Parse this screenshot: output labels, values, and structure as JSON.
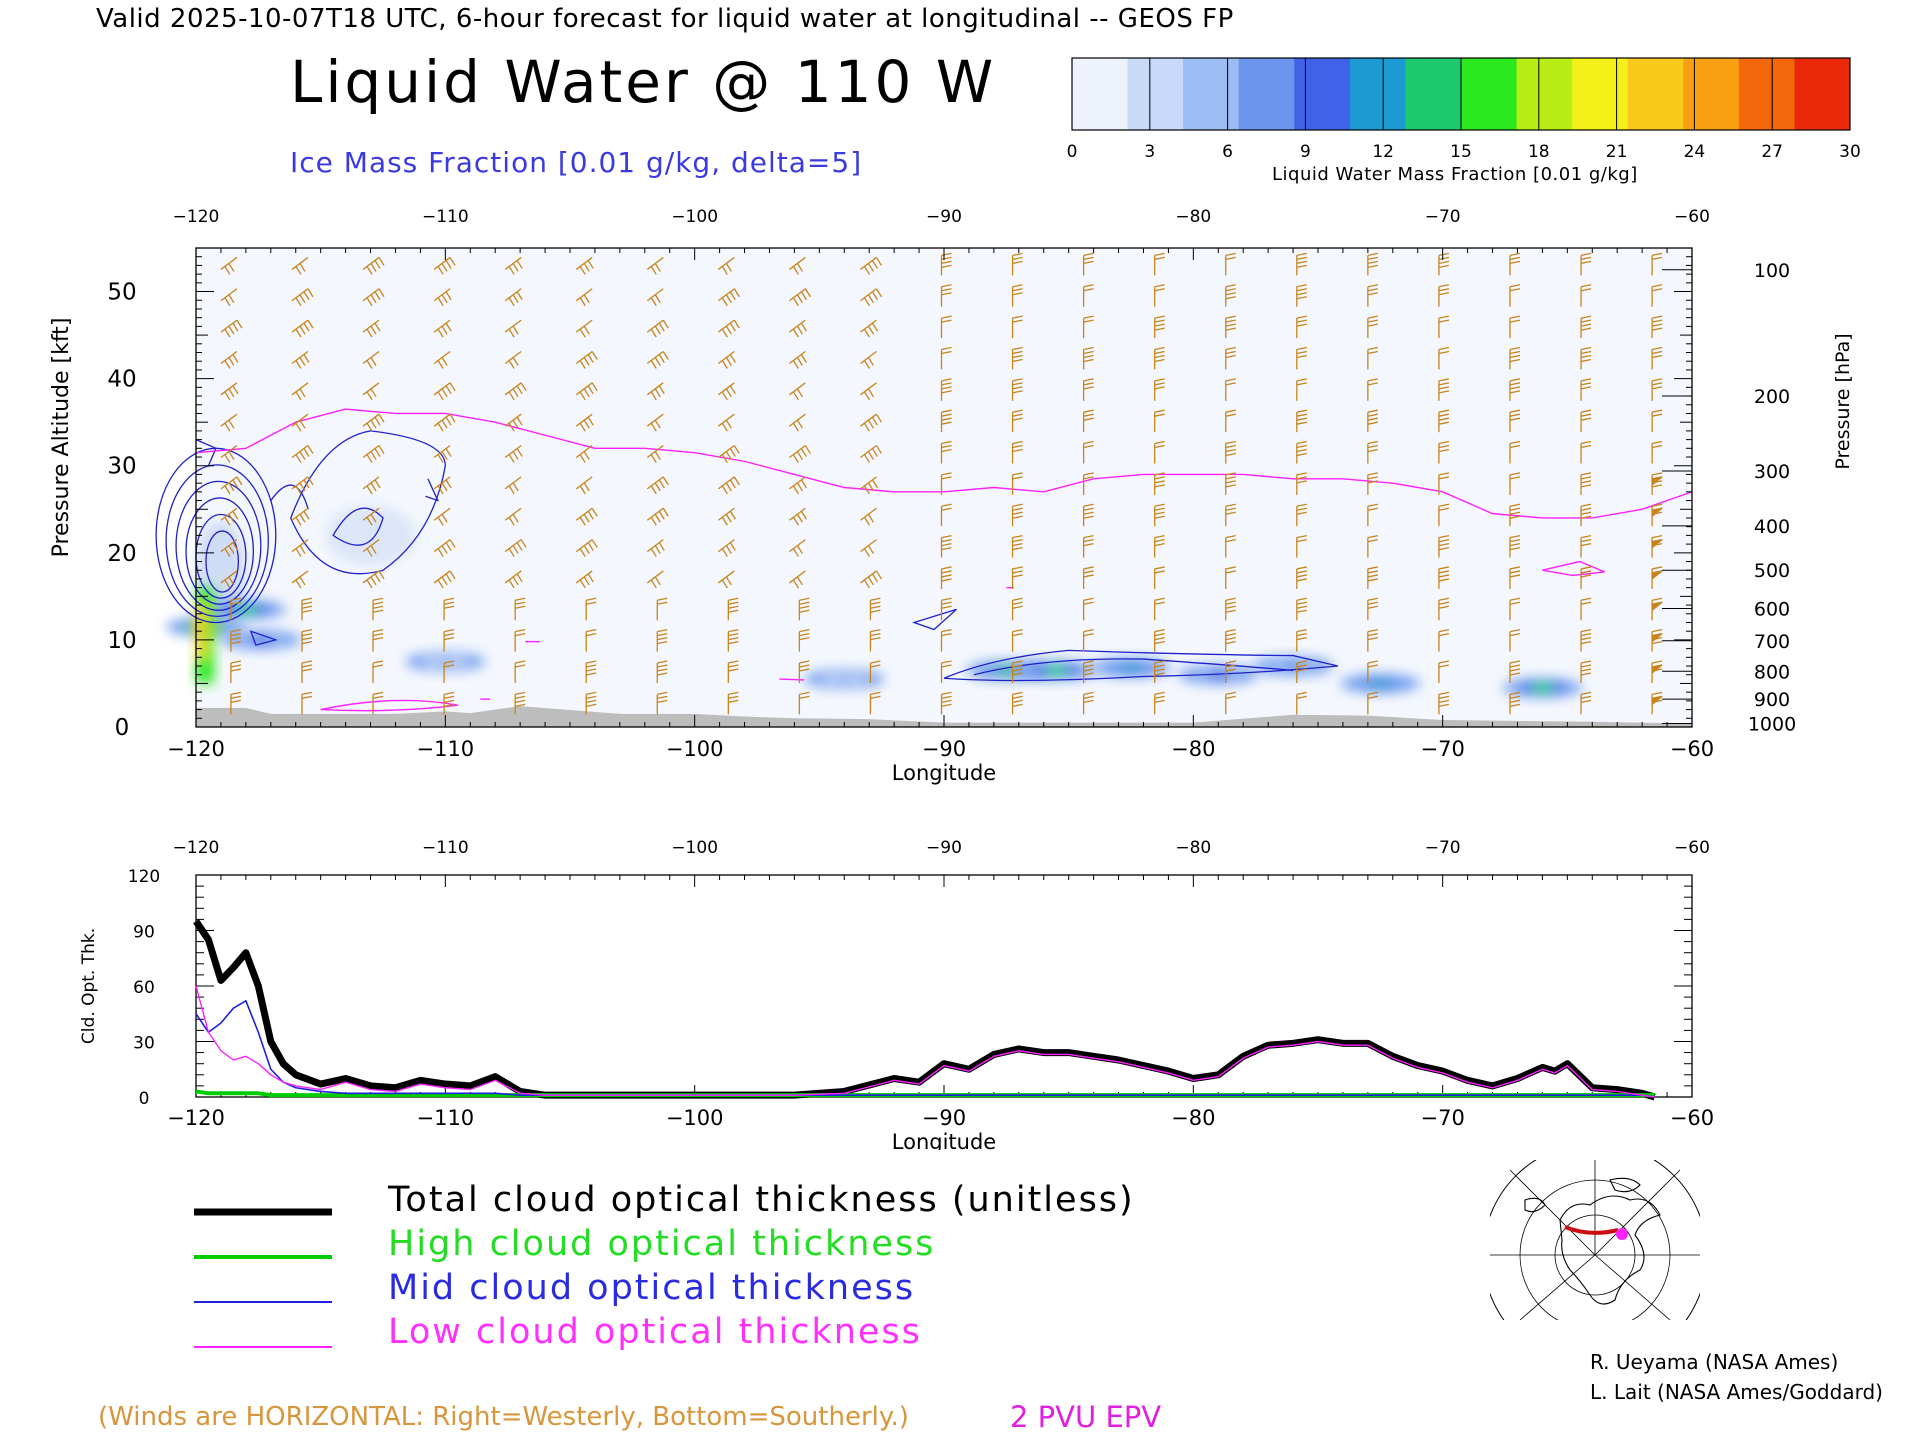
{
  "header": {
    "valid_line": "Valid 2025-10-07T18 UTC, 6-hour forecast for liquid water at longitudinal -- GEOS FP",
    "title": "Liquid Water @ 110 W",
    "subtitle": "Ice Mass Fraction [0.01 g/kg, delta=5]"
  },
  "colorbar": {
    "label": "Liquid Water Mass Fraction [0.01 g/kg]",
    "ticks": [
      "0",
      "3",
      "6",
      "9",
      "12",
      "15",
      "18",
      "21",
      "24",
      "27",
      "30"
    ],
    "colors": [
      "#eef2fc",
      "#c9d9f8",
      "#9cbcf4",
      "#6a96ee",
      "#3f63e8",
      "#1c9ad2",
      "#1ec86e",
      "#2ce81e",
      "#b8ee16",
      "#f4f01a",
      "#f8c81a",
      "#f8a012",
      "#f4680c",
      "#e82808"
    ]
  },
  "chart_data": [
    {
      "type": "heatmap",
      "title": "Liquid Water @ 110 W",
      "xlabel": "Longitude",
      "ylabel": "Pressure Altitude [kft]",
      "ylabel_right": "Pressure [hPa]",
      "xlim": [
        -120,
        -60
      ],
      "ylim": [
        0,
        55
      ],
      "x_ticks": [
        -120,
        -110,
        -100,
        -90,
        -80,
        -70,
        -60
      ],
      "x_tick_labels": [
        "−120",
        "−110",
        "−100",
        "−90",
        "−80",
        "−70",
        "−60"
      ],
      "y_ticks": [
        0,
        10,
        20,
        30,
        40,
        50
      ],
      "y_tick_labels": [
        "0",
        "10",
        "20",
        "30",
        "40",
        "50"
      ],
      "right_ticks": [
        {
          "kft": 52.5,
          "label": "100"
        },
        {
          "kft": 38.0,
          "label": "200"
        },
        {
          "kft": 29.4,
          "label": "300"
        },
        {
          "kft": 23.1,
          "label": "400"
        },
        {
          "kft": 18.0,
          "label": "500"
        },
        {
          "kft": 13.6,
          "label": "600"
        },
        {
          "kft": 9.9,
          "label": "700"
        },
        {
          "kft": 6.4,
          "label": "800"
        },
        {
          "kft": 3.2,
          "label": "900"
        },
        {
          "kft": 0.4,
          "label": "1000"
        }
      ],
      "liquid_water_blobs": [
        {
          "lon": -119.6,
          "kft": 11.5,
          "value": 22
        },
        {
          "lon": -118.0,
          "kft": 13.5,
          "value": 16
        },
        {
          "lon": -117.4,
          "kft": 10.0,
          "value": 9
        },
        {
          "lon": -110.0,
          "kft": 7.5,
          "value": 6
        },
        {
          "lon": -87.5,
          "kft": 6.5,
          "value": 14
        },
        {
          "lon": -85.5,
          "kft": 6.5,
          "value": 15
        },
        {
          "lon": -82.5,
          "kft": 6.8,
          "value": 12
        },
        {
          "lon": -79.0,
          "kft": 6.0,
          "value": 10
        },
        {
          "lon": -76.0,
          "kft": 7.0,
          "value": 8
        },
        {
          "lon": -72.5,
          "kft": 5.0,
          "value": 12
        },
        {
          "lon": -66.0,
          "kft": 4.5,
          "value": 16
        },
        {
          "lon": -94.0,
          "kft": 5.5,
          "value": 5
        }
      ],
      "epv_2pvu_line": {
        "lon": [
          -120,
          -118,
          -116,
          -114,
          -112,
          -110,
          -108,
          -106,
          -104,
          -102,
          -100,
          -98,
          -96,
          -94,
          -92,
          -90,
          -88,
          -86,
          -84,
          -82,
          -80,
          -78,
          -76,
          -74,
          -72,
          -70,
          -68,
          -66,
          -64,
          -62,
          -60
        ],
        "kft": [
          31.5,
          32,
          35,
          36.5,
          36,
          36,
          35,
          33.5,
          32,
          32,
          31.5,
          30.5,
          29,
          27.5,
          27,
          27,
          27.5,
          27,
          28.5,
          29,
          29,
          29,
          28.5,
          28.5,
          28,
          27,
          24.5,
          24,
          24,
          25,
          27
        ]
      },
      "annotations": [
        "2 PVU EPV"
      ]
    },
    {
      "type": "line",
      "xlabel": "Longitude",
      "ylabel": "Cld. Opt. Thk.",
      "xlim": [
        -120,
        -60
      ],
      "ylim": [
        0,
        120
      ],
      "x_ticks": [
        -120,
        -110,
        -100,
        -90,
        -80,
        -70,
        -60
      ],
      "x_tick_labels": [
        "−120",
        "−110",
        "−100",
        "−90",
        "−80",
        "−70",
        "−60"
      ],
      "y_ticks": [
        0,
        30,
        60,
        90,
        120
      ],
      "y_tick_labels": [
        "0",
        "30",
        "60",
        "90",
        "120"
      ],
      "x": [
        -120,
        -119.5,
        -119,
        -118.5,
        -118,
        -117.5,
        -117,
        -116.5,
        -116,
        -115,
        -114,
        -113,
        -112,
        -111,
        -110,
        -109,
        -108,
        -107,
        -106,
        -104,
        -102,
        -100,
        -98,
        -96,
        -94,
        -92,
        -91,
        -90,
        -89,
        -88,
        -87,
        -86,
        -85,
        -84,
        -83,
        -82,
        -81,
        -80,
        -79,
        -78,
        -77,
        -76,
        -75,
        -74,
        -73,
        -72,
        -71,
        -70,
        -69,
        -68,
        -67,
        -66,
        -65.5,
        -65,
        -64,
        -63,
        -62,
        -61.5
      ],
      "series": [
        {
          "name": "Total cloud optical thickness (unitless)",
          "color": "#000000",
          "values": [
            95,
            85,
            63,
            70,
            78,
            60,
            30,
            18,
            12,
            7,
            10,
            6,
            5,
            9,
            7,
            6,
            11,
            3,
            1,
            1,
            1,
            1,
            1,
            1,
            3,
            10,
            8,
            18,
            15,
            23,
            26,
            24,
            24,
            22,
            20,
            17,
            14,
            10,
            12,
            22,
            28,
            29,
            31,
            29,
            29,
            22,
            17,
            14,
            9,
            6,
            10,
            16,
            14,
            18,
            5,
            4,
            2,
            0
          ]
        },
        {
          "name": "High cloud optical thickness",
          "color": "#00cc00",
          "values": [
            3,
            2,
            2,
            2,
            2,
            2,
            1,
            1,
            1,
            1,
            1,
            1,
            1,
            1,
            1,
            1,
            1,
            1,
            1,
            1,
            1,
            1,
            1,
            1,
            1,
            1,
            1,
            1,
            1,
            1,
            1,
            1,
            1,
            1,
            1,
            1,
            1,
            1,
            1,
            1,
            1,
            1,
            1,
            1,
            1,
            1,
            1,
            1,
            1,
            1,
            1,
            1,
            1,
            1,
            1,
            1,
            1,
            1
          ]
        },
        {
          "name": "Mid cloud optical thickness",
          "color": "#2020e0",
          "values": [
            45,
            35,
            40,
            48,
            52,
            35,
            15,
            8,
            5,
            3,
            2,
            2,
            2,
            2,
            2,
            2,
            2,
            1,
            1,
            1,
            1,
            1,
            1,
            1,
            1,
            1,
            1,
            1,
            1,
            1,
            1,
            1,
            1,
            1,
            1,
            1,
            1,
            1,
            1,
            1,
            1,
            1,
            1,
            1,
            1,
            1,
            1,
            1,
            1,
            1,
            1,
            1,
            1,
            1,
            1,
            1,
            1,
            0
          ]
        },
        {
          "name": "Low cloud optical thickness",
          "color": "#ff20ff",
          "values": [
            60,
            35,
            25,
            20,
            22,
            18,
            12,
            8,
            6,
            4,
            8,
            4,
            3,
            7,
            5,
            4,
            9,
            2,
            1,
            1,
            1,
            1,
            1,
            1,
            2,
            9,
            7,
            17,
            14,
            22,
            25,
            23,
            23,
            21,
            19,
            16,
            13,
            9,
            11,
            21,
            27,
            28,
            30,
            28,
            28,
            21,
            16,
            13,
            8,
            5,
            9,
            15,
            13,
            17,
            4,
            3,
            1,
            0
          ]
        }
      ]
    }
  ],
  "legend": {
    "total": "Total cloud optical thickness (unitless)",
    "high": "High cloud optical thickness",
    "mid": "Mid cloud optical thickness",
    "low": "Low cloud optical thickness"
  },
  "notes": {
    "winds": "(Winds are HORIZONTAL: Right=Westerly, Bottom=Southerly.)",
    "epv": "2 PVU EPV"
  },
  "credits": {
    "line1": "R. Ueyama (NASA Ames)",
    "line2": "L. Lait (NASA Ames/Goddard)"
  },
  "colors": {
    "wind_barb": "#c8841c",
    "epv_line": "#ff20ff",
    "ice_contour": "#2020c8",
    "terrain": "#bdbdbd"
  }
}
